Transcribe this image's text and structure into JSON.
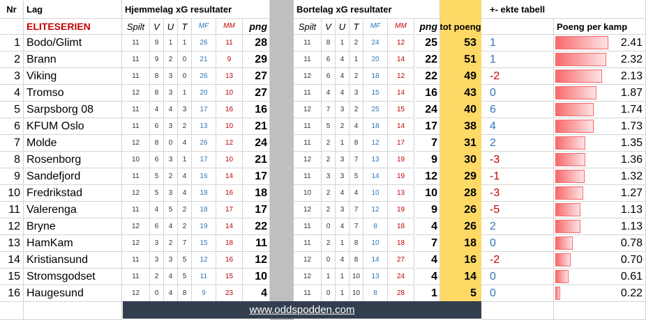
{
  "header": {
    "nr": "Nr",
    "lag": "Lag",
    "home_title": "Hjemmelag xG resultater",
    "away_title": "Bortelag xG resultater",
    "diff_title": "+- ekte tabell",
    "league": "ELITESERIEN",
    "tot": "tot poeng",
    "ppk": "Poeng per kamp",
    "sub": [
      "Spilt",
      "V",
      "U",
      "T",
      "MF",
      "MM",
      "png"
    ]
  },
  "teams": [
    {
      "nr": "1",
      "name": "Bodo/Glimt",
      "h": [
        "11",
        "9",
        "1",
        "1",
        "26",
        "11",
        "28"
      ],
      "a": [
        "11",
        "8",
        "1",
        "2",
        "24",
        "12",
        "25"
      ],
      "tot": "53",
      "diff": "1",
      "ppk": "2.41"
    },
    {
      "nr": "2",
      "name": "Brann",
      "h": [
        "11",
        "9",
        "2",
        "0",
        "21",
        "9",
        "29"
      ],
      "a": [
        "11",
        "6",
        "4",
        "1",
        "20",
        "14",
        "22"
      ],
      "tot": "51",
      "diff": "1",
      "ppk": "2.32"
    },
    {
      "nr": "3",
      "name": "Viking",
      "h": [
        "11",
        "8",
        "3",
        "0",
        "26",
        "13",
        "27"
      ],
      "a": [
        "12",
        "6",
        "4",
        "2",
        "18",
        "12",
        "22"
      ],
      "tot": "49",
      "diff": "-2",
      "ppk": "2.13"
    },
    {
      "nr": "4",
      "name": "Tromso",
      "h": [
        "12",
        "8",
        "3",
        "1",
        "20",
        "10",
        "27"
      ],
      "a": [
        "11",
        "4",
        "4",
        "3",
        "15",
        "14",
        "16"
      ],
      "tot": "43",
      "diff": "0",
      "ppk": "1.87"
    },
    {
      "nr": "5",
      "name": "Sarpsborg 08",
      "h": [
        "11",
        "4",
        "4",
        "3",
        "17",
        "16",
        "16"
      ],
      "a": [
        "12",
        "7",
        "3",
        "2",
        "25",
        "15",
        "24"
      ],
      "tot": "40",
      "diff": "6",
      "ppk": "1.74"
    },
    {
      "nr": "6",
      "name": "KFUM Oslo",
      "h": [
        "11",
        "6",
        "3",
        "2",
        "13",
        "10",
        "21"
      ],
      "a": [
        "11",
        "5",
        "2",
        "4",
        "18",
        "14",
        "17"
      ],
      "tot": "38",
      "diff": "4",
      "ppk": "1.73"
    },
    {
      "nr": "7",
      "name": "Molde",
      "h": [
        "12",
        "8",
        "0",
        "4",
        "26",
        "12",
        "24"
      ],
      "a": [
        "11",
        "2",
        "1",
        "8",
        "12",
        "17",
        "7"
      ],
      "tot": "31",
      "diff": "2",
      "ppk": "1.35"
    },
    {
      "nr": "8",
      "name": "Rosenborg",
      "h": [
        "10",
        "6",
        "3",
        "1",
        "17",
        "10",
        "21"
      ],
      "a": [
        "12",
        "2",
        "3",
        "7",
        "13",
        "19",
        "9"
      ],
      "tot": "30",
      "diff": "-3",
      "ppk": "1.36"
    },
    {
      "nr": "9",
      "name": "Sandefjord",
      "h": [
        "11",
        "5",
        "2",
        "4",
        "16",
        "14",
        "17"
      ],
      "a": [
        "11",
        "3",
        "3",
        "5",
        "14",
        "19",
        "12"
      ],
      "tot": "29",
      "diff": "-1",
      "ppk": "1.32"
    },
    {
      "nr": "10",
      "name": "Fredrikstad",
      "h": [
        "12",
        "5",
        "3",
        "4",
        "18",
        "16",
        "18"
      ],
      "a": [
        "10",
        "2",
        "4",
        "4",
        "10",
        "13",
        "10"
      ],
      "tot": "28",
      "diff": "-3",
      "ppk": "1.27"
    },
    {
      "nr": "11",
      "name": "Valerenga",
      "h": [
        "11",
        "4",
        "5",
        "2",
        "18",
        "17",
        "17"
      ],
      "a": [
        "12",
        "2",
        "3",
        "7",
        "12",
        "19",
        "9"
      ],
      "tot": "26",
      "diff": "-5",
      "ppk": "1.13"
    },
    {
      "nr": "12",
      "name": "Bryne",
      "h": [
        "12",
        "6",
        "4",
        "2",
        "19",
        "14",
        "22"
      ],
      "a": [
        "11",
        "0",
        "4",
        "7",
        "8",
        "18",
        "4"
      ],
      "tot": "26",
      "diff": "2",
      "ppk": "1.13"
    },
    {
      "nr": "13",
      "name": "HamKam",
      "h": [
        "12",
        "3",
        "2",
        "7",
        "15",
        "18",
        "11"
      ],
      "a": [
        "11",
        "2",
        "1",
        "8",
        "10",
        "18",
        "7"
      ],
      "tot": "18",
      "diff": "0",
      "ppk": "0.78"
    },
    {
      "nr": "14",
      "name": "Kristiansund",
      "h": [
        "11",
        "3",
        "3",
        "5",
        "12",
        "16",
        "12"
      ],
      "a": [
        "12",
        "0",
        "4",
        "8",
        "14",
        "27",
        "4"
      ],
      "tot": "16",
      "diff": "-2",
      "ppk": "0.70"
    },
    {
      "nr": "15",
      "name": "Stromsgodset",
      "h": [
        "11",
        "2",
        "4",
        "5",
        "11",
        "15",
        "10"
      ],
      "a": [
        "12",
        "1",
        "1",
        "10",
        "13",
        "24",
        "4"
      ],
      "tot": "14",
      "diff": "0",
      "ppk": "0.61"
    },
    {
      "nr": "16",
      "name": "Haugesund",
      "h": [
        "12",
        "0",
        "4",
        "8",
        "9",
        "23",
        "4"
      ],
      "a": [
        "11",
        "0",
        "1",
        "10",
        "8",
        "28",
        "1"
      ],
      "tot": "5",
      "diff": "0",
      "ppk": "0.22"
    }
  ],
  "footer": {
    "site": "www.oddspodden.com"
  },
  "colors": {
    "tot_fill": "#ffd966",
    "separator": "#bfbfbf",
    "pos": "#2e75b6",
    "neg": "#c00000",
    "bar": "#f8696b",
    "banner": "#333f4f"
  }
}
